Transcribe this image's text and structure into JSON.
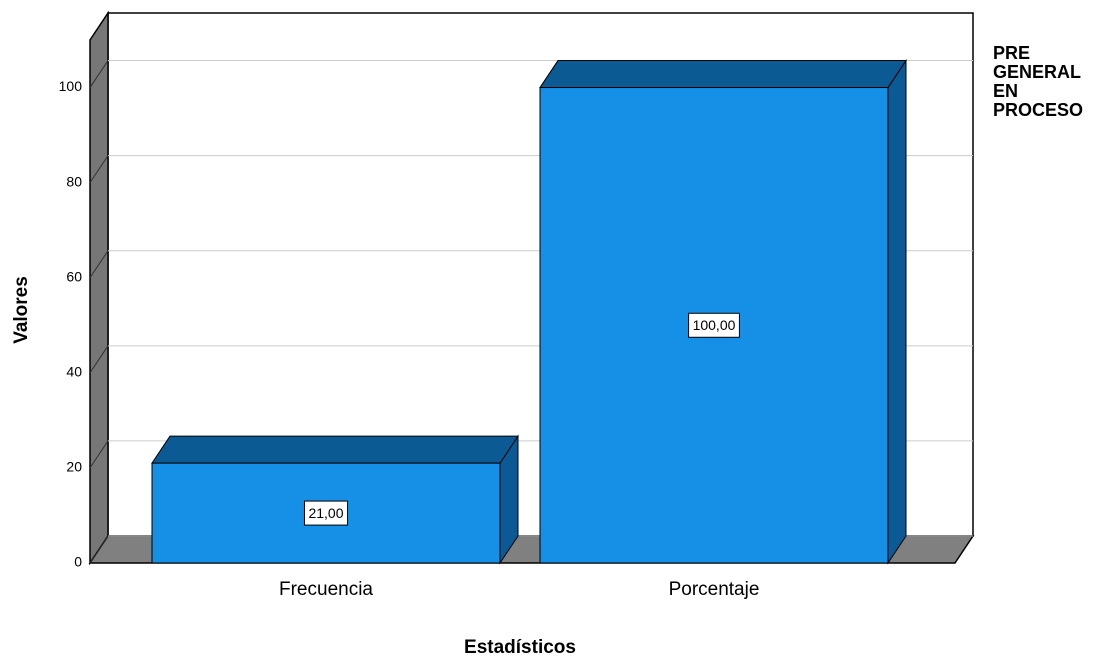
{
  "chart_data": {
    "type": "bar3d",
    "x_label": "Estadísticos",
    "y_label": "Valores",
    "legend_title": "PRE GENERAL EN PROCESO",
    "categories": [
      "Frecuencia",
      "Porcentaje"
    ],
    "values": [
      21,
      100
    ],
    "value_labels": [
      "21,00",
      "100,00"
    ],
    "color": "#1590e6",
    "ylim": [
      0,
      110
    ],
    "yticks": [
      0,
      20,
      40,
      60,
      80,
      100
    ],
    "grid": true
  }
}
